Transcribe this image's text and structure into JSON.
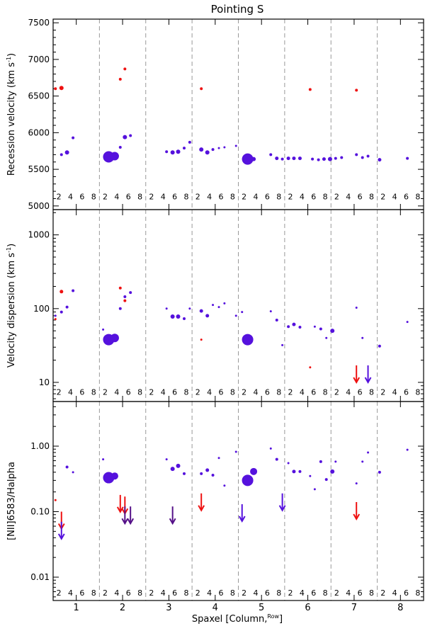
{
  "title": "Pointing S",
  "xlabel": "Spaxel [Column,",
  "xlabel_sup": "Row",
  "xlabel_end": "]",
  "x_ticks": [
    "1",
    "2",
    "3",
    "4",
    "5",
    "6",
    "7",
    "8"
  ],
  "row_labels": [
    "2",
    "4",
    "6",
    "8"
  ],
  "colors": {
    "red": "#ee1111",
    "purple": "#5511dd",
    "dark_arrow": "#551188",
    "grid": "#999999"
  },
  "chart_data": [
    {
      "type": "scatter",
      "name": "recession-velocity",
      "ylabel": "Recession velocity (km s",
      "ylabel_sup": "-1",
      "ylabel_end": ")",
      "yscale": "linear",
      "ylim": [
        4950,
        7550
      ],
      "yticks": [
        5000,
        5500,
        6000,
        6500,
        7000,
        7500
      ],
      "ytick_labels": [
        "5000",
        "5500",
        "6000",
        "6500",
        "7000",
        "7500"
      ],
      "row_label_value": 5130,
      "points": [
        {
          "x": 0.55,
          "y": 6600,
          "s": 2,
          "c": "red"
        },
        {
          "x": 0.68,
          "y": 6610,
          "s": 3,
          "c": "red"
        },
        {
          "x": 1.95,
          "y": 6730,
          "s": 2,
          "c": "red"
        },
        {
          "x": 2.05,
          "y": 6870,
          "s": 2,
          "c": "red"
        },
        {
          "x": 3.7,
          "y": 6600,
          "s": 2,
          "c": "red"
        },
        {
          "x": 6.05,
          "y": 6590,
          "s": 2,
          "c": "red"
        },
        {
          "x": 7.05,
          "y": 6580,
          "s": 2,
          "c": "red"
        },
        {
          "x": 0.68,
          "y": 5700,
          "s": 2,
          "c": "purple"
        },
        {
          "x": 0.8,
          "y": 5730,
          "s": 3,
          "c": "purple"
        },
        {
          "x": 0.93,
          "y": 5930,
          "s": 2,
          "c": "purple"
        },
        {
          "x": 1.7,
          "y": 5670,
          "s": 8,
          "c": "purple"
        },
        {
          "x": 1.83,
          "y": 5680,
          "s": 6,
          "c": "purple"
        },
        {
          "x": 1.95,
          "y": 5800,
          "s": 2,
          "c": "purple"
        },
        {
          "x": 2.05,
          "y": 5940,
          "s": 3,
          "c": "purple"
        },
        {
          "x": 2.17,
          "y": 5960,
          "s": 2,
          "c": "purple"
        },
        {
          "x": 2.95,
          "y": 5740,
          "s": 2,
          "c": "purple"
        },
        {
          "x": 3.08,
          "y": 5730,
          "s": 3,
          "c": "purple"
        },
        {
          "x": 3.2,
          "y": 5740,
          "s": 3,
          "c": "purple"
        },
        {
          "x": 3.33,
          "y": 5790,
          "s": 2,
          "c": "purple"
        },
        {
          "x": 3.45,
          "y": 5870,
          "s": 2,
          "c": "purple"
        },
        {
          "x": 3.7,
          "y": 5770,
          "s": 3,
          "c": "purple"
        },
        {
          "x": 3.83,
          "y": 5730,
          "s": 3,
          "c": "purple"
        },
        {
          "x": 3.95,
          "y": 5770,
          "s": 2,
          "c": "purple"
        },
        {
          "x": 4.08,
          "y": 5790,
          "s": 1.5,
          "c": "purple"
        },
        {
          "x": 4.2,
          "y": 5800,
          "s": 1.5,
          "c": "purple"
        },
        {
          "x": 4.45,
          "y": 5820,
          "s": 1.5,
          "c": "purple"
        },
        {
          "x": 4.7,
          "y": 5640,
          "s": 8,
          "c": "purple"
        },
        {
          "x": 4.83,
          "y": 5640,
          "s": 3,
          "c": "purple"
        },
        {
          "x": 5.2,
          "y": 5700,
          "s": 2,
          "c": "purple"
        },
        {
          "x": 5.33,
          "y": 5650,
          "s": 2.5,
          "c": "purple"
        },
        {
          "x": 5.45,
          "y": 5640,
          "s": 2,
          "c": "purple"
        },
        {
          "x": 5.58,
          "y": 5650,
          "s": 2.5,
          "c": "purple"
        },
        {
          "x": 5.7,
          "y": 5650,
          "s": 2.5,
          "c": "purple"
        },
        {
          "x": 5.83,
          "y": 5650,
          "s": 2.5,
          "c": "purple"
        },
        {
          "x": 6.1,
          "y": 5640,
          "s": 2,
          "c": "purple"
        },
        {
          "x": 6.23,
          "y": 5630,
          "s": 2,
          "c": "purple"
        },
        {
          "x": 6.35,
          "y": 5640,
          "s": 2.5,
          "c": "purple"
        },
        {
          "x": 6.48,
          "y": 5640,
          "s": 3,
          "c": "purple"
        },
        {
          "x": 6.6,
          "y": 5650,
          "s": 2,
          "c": "purple"
        },
        {
          "x": 6.73,
          "y": 5660,
          "s": 2,
          "c": "purple"
        },
        {
          "x": 7.05,
          "y": 5700,
          "s": 2,
          "c": "purple"
        },
        {
          "x": 7.18,
          "y": 5660,
          "s": 2,
          "c": "purple"
        },
        {
          "x": 7.3,
          "y": 5680,
          "s": 2,
          "c": "purple"
        },
        {
          "x": 7.55,
          "y": 5630,
          "s": 2.5,
          "c": "purple"
        },
        {
          "x": 8.15,
          "y": 5650,
          "s": 2,
          "c": "purple"
        }
      ],
      "upper_limits": []
    },
    {
      "type": "scatter",
      "name": "velocity-dispersion",
      "ylabel": "Velocity dispersion (km s",
      "ylabel_sup": "-1",
      "ylabel_end": ")",
      "yscale": "log",
      "ylim": [
        5.5,
        2200
      ],
      "yticks": [
        10,
        100,
        1000
      ],
      "ytick_labels": [
        "10",
        "100",
        "1000"
      ],
      "row_label_value": 7.4,
      "points": [
        {
          "x": 0.55,
          "y": 72,
          "s": 1.5,
          "c": "red"
        },
        {
          "x": 0.68,
          "y": 170,
          "s": 2.5,
          "c": "red"
        },
        {
          "x": 1.95,
          "y": 190,
          "s": 2,
          "c": "red"
        },
        {
          "x": 2.05,
          "y": 128,
          "s": 2,
          "c": "red"
        },
        {
          "x": 3.7,
          "y": 38,
          "s": 1.5,
          "c": "red"
        },
        {
          "x": 6.05,
          "y": 16,
          "s": 1.5,
          "c": "red"
        },
        {
          "x": 0.55,
          "y": 80,
          "s": 1.5,
          "c": "purple"
        },
        {
          "x": 0.68,
          "y": 90,
          "s": 2,
          "c": "purple"
        },
        {
          "x": 0.8,
          "y": 105,
          "s": 2,
          "c": "purple"
        },
        {
          "x": 0.93,
          "y": 175,
          "s": 2,
          "c": "purple"
        },
        {
          "x": 1.58,
          "y": 52,
          "s": 1.5,
          "c": "purple"
        },
        {
          "x": 1.7,
          "y": 38,
          "s": 8,
          "c": "purple"
        },
        {
          "x": 1.83,
          "y": 40,
          "s": 6,
          "c": "purple"
        },
        {
          "x": 1.95,
          "y": 100,
          "s": 2,
          "c": "purple"
        },
        {
          "x": 2.05,
          "y": 145,
          "s": 2,
          "c": "purple"
        },
        {
          "x": 2.17,
          "y": 165,
          "s": 2,
          "c": "purple"
        },
        {
          "x": 2.95,
          "y": 100,
          "s": 1.5,
          "c": "purple"
        },
        {
          "x": 3.08,
          "y": 78,
          "s": 3,
          "c": "purple"
        },
        {
          "x": 3.2,
          "y": 78,
          "s": 3,
          "c": "purple"
        },
        {
          "x": 3.33,
          "y": 73,
          "s": 2,
          "c": "purple"
        },
        {
          "x": 3.45,
          "y": 100,
          "s": 1.5,
          "c": "purple"
        },
        {
          "x": 3.7,
          "y": 93,
          "s": 2.5,
          "c": "purple"
        },
        {
          "x": 3.83,
          "y": 80,
          "s": 2.5,
          "c": "purple"
        },
        {
          "x": 3.95,
          "y": 112,
          "s": 1.5,
          "c": "purple"
        },
        {
          "x": 4.08,
          "y": 105,
          "s": 1.5,
          "c": "purple"
        },
        {
          "x": 4.2,
          "y": 118,
          "s": 1.5,
          "c": "purple"
        },
        {
          "x": 4.45,
          "y": 80,
          "s": 1.5,
          "c": "purple"
        },
        {
          "x": 4.58,
          "y": 90,
          "s": 1.5,
          "c": "purple"
        },
        {
          "x": 4.7,
          "y": 38,
          "s": 8,
          "c": "purple"
        },
        {
          "x": 5.2,
          "y": 92,
          "s": 1.5,
          "c": "purple"
        },
        {
          "x": 5.33,
          "y": 70,
          "s": 2,
          "c": "purple"
        },
        {
          "x": 5.45,
          "y": 32,
          "s": 1.5,
          "c": "purple"
        },
        {
          "x": 5.58,
          "y": 57,
          "s": 2,
          "c": "purple"
        },
        {
          "x": 5.7,
          "y": 61,
          "s": 2.5,
          "c": "purple"
        },
        {
          "x": 5.83,
          "y": 56,
          "s": 2,
          "c": "purple"
        },
        {
          "x": 6.15,
          "y": 57,
          "s": 1.5,
          "c": "purple"
        },
        {
          "x": 6.28,
          "y": 53,
          "s": 2,
          "c": "purple"
        },
        {
          "x": 6.4,
          "y": 40,
          "s": 1.5,
          "c": "purple"
        },
        {
          "x": 6.53,
          "y": 50,
          "s": 3,
          "c": "purple"
        },
        {
          "x": 7.05,
          "y": 103,
          "s": 1.5,
          "c": "purple"
        },
        {
          "x": 7.18,
          "y": 40,
          "s": 1.5,
          "c": "purple"
        },
        {
          "x": 7.55,
          "y": 31,
          "s": 2,
          "c": "purple"
        },
        {
          "x": 8.15,
          "y": 66,
          "s": 1.5,
          "c": "purple"
        }
      ],
      "upper_limits": [
        {
          "x": 7.05,
          "y": 17,
          "c": "red"
        },
        {
          "x": 7.3,
          "y": 17,
          "c": "purple"
        }
      ]
    },
    {
      "type": "scatter",
      "name": "nii-halpha-ratio",
      "ylabel": "[NII]6583/Halpha",
      "ylabel_sup": "",
      "ylabel_end": "",
      "yscale": "log",
      "ylim": [
        0.0044,
        4.8
      ],
      "yticks": [
        0.01,
        0.1,
        1.0
      ],
      "ytick_labels": [
        "0.01",
        "0.10",
        "1.00"
      ],
      "row_label_value": 0.0058,
      "points": [
        {
          "x": 0.55,
          "y": 0.15,
          "s": 1.5,
          "c": "red"
        },
        {
          "x": 0.8,
          "y": 0.48,
          "s": 2,
          "c": "purple"
        },
        {
          "x": 0.93,
          "y": 0.4,
          "s": 1.5,
          "c": "purple"
        },
        {
          "x": 1.58,
          "y": 0.63,
          "s": 1.5,
          "c": "purple"
        },
        {
          "x": 1.7,
          "y": 0.33,
          "s": 8,
          "c": "purple"
        },
        {
          "x": 1.83,
          "y": 0.35,
          "s": 5,
          "c": "purple"
        },
        {
          "x": 2.95,
          "y": 0.63,
          "s": 1.5,
          "c": "purple"
        },
        {
          "x": 3.08,
          "y": 0.45,
          "s": 3,
          "c": "purple"
        },
        {
          "x": 3.2,
          "y": 0.5,
          "s": 3,
          "c": "purple"
        },
        {
          "x": 3.33,
          "y": 0.38,
          "s": 2,
          "c": "purple"
        },
        {
          "x": 3.7,
          "y": 0.38,
          "s": 2,
          "c": "purple"
        },
        {
          "x": 3.83,
          "y": 0.43,
          "s": 2.5,
          "c": "purple"
        },
        {
          "x": 3.95,
          "y": 0.36,
          "s": 2,
          "c": "purple"
        },
        {
          "x": 4.08,
          "y": 0.66,
          "s": 1.5,
          "c": "purple"
        },
        {
          "x": 4.2,
          "y": 0.25,
          "s": 1.5,
          "c": "purple"
        },
        {
          "x": 4.45,
          "y": 0.82,
          "s": 1.5,
          "c": "purple"
        },
        {
          "x": 4.7,
          "y": 0.3,
          "s": 8,
          "c": "purple"
        },
        {
          "x": 4.83,
          "y": 0.41,
          "s": 5,
          "c": "purple"
        },
        {
          "x": 5.2,
          "y": 0.92,
          "s": 1.5,
          "c": "purple"
        },
        {
          "x": 5.33,
          "y": 0.63,
          "s": 2,
          "c": "purple"
        },
        {
          "x": 5.58,
          "y": 0.55,
          "s": 1.5,
          "c": "purple"
        },
        {
          "x": 5.7,
          "y": 0.41,
          "s": 2.5,
          "c": "purple"
        },
        {
          "x": 5.83,
          "y": 0.41,
          "s": 2,
          "c": "purple"
        },
        {
          "x": 6.05,
          "y": 0.35,
          "s": 1.5,
          "c": "purple"
        },
        {
          "x": 6.15,
          "y": 0.22,
          "s": 1.5,
          "c": "purple"
        },
        {
          "x": 6.28,
          "y": 0.58,
          "s": 2,
          "c": "purple"
        },
        {
          "x": 6.4,
          "y": 0.31,
          "s": 2,
          "c": "purple"
        },
        {
          "x": 6.53,
          "y": 0.41,
          "s": 3,
          "c": "purple"
        },
        {
          "x": 6.6,
          "y": 0.58,
          "s": 1.5,
          "c": "purple"
        },
        {
          "x": 7.05,
          "y": 0.27,
          "s": 1.5,
          "c": "purple"
        },
        {
          "x": 7.18,
          "y": 0.58,
          "s": 1.5,
          "c": "purple"
        },
        {
          "x": 7.3,
          "y": 0.8,
          "s": 1.5,
          "c": "purple"
        },
        {
          "x": 7.55,
          "y": 0.4,
          "s": 2,
          "c": "purple"
        },
        {
          "x": 8.15,
          "y": 0.88,
          "s": 1.5,
          "c": "purple"
        }
      ],
      "upper_limits": [
        {
          "x": 0.68,
          "y": 0.1,
          "c": "red"
        },
        {
          "x": 0.68,
          "y": 0.07,
          "c": "purple"
        },
        {
          "x": 1.95,
          "y": 0.18,
          "c": "red"
        },
        {
          "x": 2.05,
          "y": 0.17,
          "c": "red"
        },
        {
          "x": 2.05,
          "y": 0.12,
          "c": "dark"
        },
        {
          "x": 2.17,
          "y": 0.12,
          "c": "dark"
        },
        {
          "x": 3.08,
          "y": 0.12,
          "c": "dark"
        },
        {
          "x": 3.7,
          "y": 0.19,
          "c": "red"
        },
        {
          "x": 4.58,
          "y": 0.13,
          "c": "purple"
        },
        {
          "x": 5.45,
          "y": 0.19,
          "c": "purple"
        },
        {
          "x": 7.05,
          "y": 0.14,
          "c": "red"
        }
      ]
    }
  ]
}
